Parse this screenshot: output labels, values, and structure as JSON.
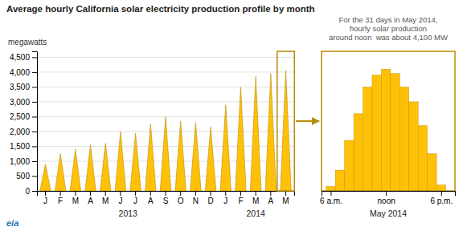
{
  "chart_data": [
    {
      "type": "bar",
      "title": "Average hourly California solar electricity production profile by month",
      "y_label": "megawatts",
      "annotation": "For the 31 days in May 2014,\nhourly solar production\naround noon  was about 4,100 MW",
      "group_labels": [
        "2013",
        "2014"
      ],
      "credit": "eia",
      "categories": [
        "J",
        "F",
        "M",
        "A",
        "M",
        "J",
        "J",
        "A",
        "S",
        "O",
        "N",
        "D",
        "J",
        "F",
        "M",
        "A",
        "M"
      ],
      "values": [
        900,
        1250,
        1400,
        1550,
        1600,
        2000,
        1950,
        2250,
        2500,
        2350,
        2300,
        2150,
        2900,
        3500,
        3850,
        3950,
        4050
      ],
      "color": "#FFC107",
      "ylim": [
        0,
        4700
      ],
      "yticks": [
        0,
        500,
        {
          "value": 1000,
          "label": "1,000"
        },
        {
          "value": 1500,
          "label": "1,500"
        },
        {
          "value": 2000,
          "label": "2,000"
        },
        {
          "value": 2500,
          "label": "2,500"
        },
        {
          "value": 3000,
          "label": "3,000"
        },
        {
          "value": 3500,
          "label": "3,500"
        },
        {
          "value": 4000,
          "label": "4,000"
        },
        {
          "value": 4500,
          "label": "4,500"
        }
      ],
      "grid": true
    },
    {
      "type": "bar",
      "x_label": "May 2014",
      "x": [
        5,
        6,
        7,
        8,
        9,
        10,
        11,
        12,
        13,
        14,
        15,
        16,
        17,
        18,
        19
      ],
      "values": [
        0,
        150,
        700,
        1700,
        2600,
        3500,
        3900,
        4100,
        3950,
        3500,
        3000,
        2200,
        1250,
        200,
        0
      ],
      "color": "#FFC107",
      "xlim": [
        5,
        19.5
      ],
      "xticks": [
        {
          "value": 6,
          "label": "6 a.m."
        },
        {
          "value": 12,
          "label": "noon"
        },
        {
          "value": 18,
          "label": "6 p.m."
        }
      ],
      "ylim": [
        0,
        4700
      ],
      "yticks": [],
      "grid": false,
      "tick_labels": "x"
    }
  ]
}
